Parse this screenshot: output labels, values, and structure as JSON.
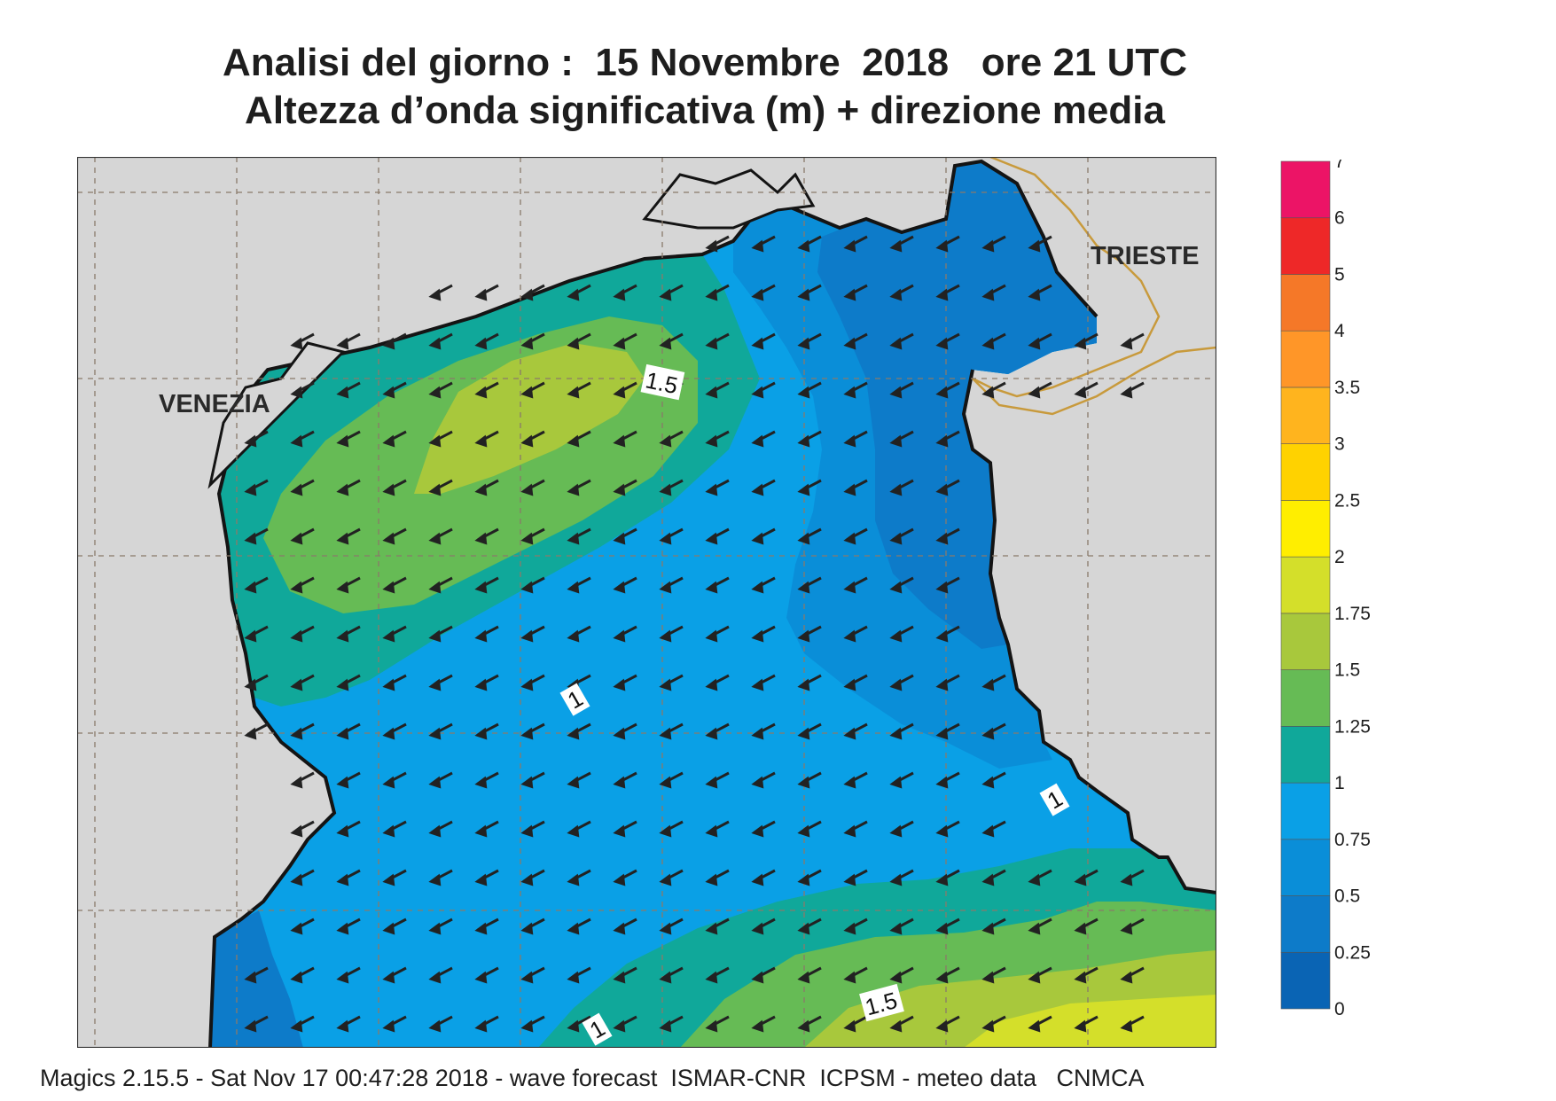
{
  "title": {
    "line1": "Analisi del giorno :  15 Novembre  2018   ore 21 UTC",
    "line2": "Altezza d’onda significativa (m) + direzione media"
  },
  "map": {
    "places": [
      {
        "name": "VENEZIA"
      },
      {
        "name": "TRIESTE"
      }
    ],
    "contour_labels": [
      "1.5",
      "1",
      "1",
      "1.5",
      "1"
    ],
    "colors": {
      "land": "#d6d6d6",
      "grid": "#8a7a6a",
      "border": "#c89a3c",
      "coast": "#141414",
      "arrow": "#222222"
    }
  },
  "colorbar": {
    "levels": [
      "0",
      "0.25",
      "0.5",
      "0.75",
      "1",
      "1.25",
      "1.5",
      "1.75",
      "2",
      "2.5",
      "3",
      "3.5",
      "4",
      "5",
      "6",
      "7"
    ],
    "colors": [
      "#0a64b4",
      "#0d7bc9",
      "#0a8ed8",
      "#0aa0e6",
      "#10a89a",
      "#66bb55",
      "#a8c83c",
      "#d4df2a",
      "#ffee00",
      "#ffd200",
      "#ffb41e",
      "#ff9628",
      "#f57828",
      "#ee2828",
      "#ec1466"
    ]
  },
  "footer": "Magics 2.15.5 - Sat Nov 17 00:47:28 2018 - wave forecast  ISMAR-CNR  ICPSM - meteo data   CNMCA"
}
